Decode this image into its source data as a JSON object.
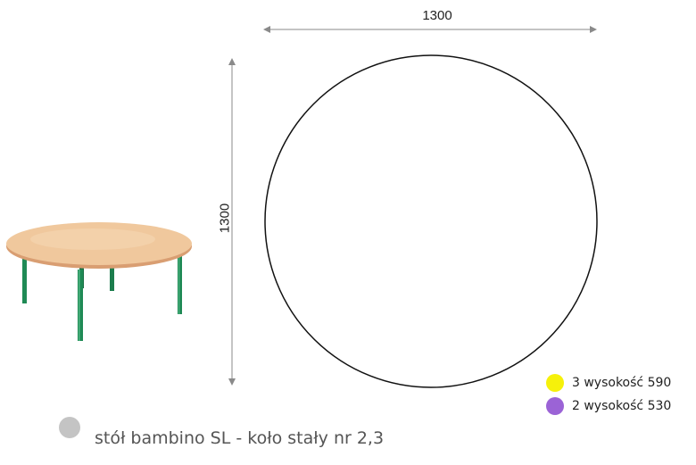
{
  "dimensions": {
    "width_label": "1300",
    "height_label": "1300"
  },
  "legend": {
    "items": [
      {
        "label": "3 wysokość 590",
        "color": "#f6f10a"
      },
      {
        "label": "2 wysokość 530",
        "color": "#9b63d6"
      }
    ]
  },
  "caption": {
    "text": "stół bambino SL - koło stały nr 2,3",
    "dot_color": "#c4c4c4"
  },
  "colors": {
    "table_top": "#f0c89d",
    "table_edge": "#d99e72",
    "table_legs": "#1f8a55",
    "outline": "#111111",
    "dimension_line": "#8a8a8a"
  }
}
